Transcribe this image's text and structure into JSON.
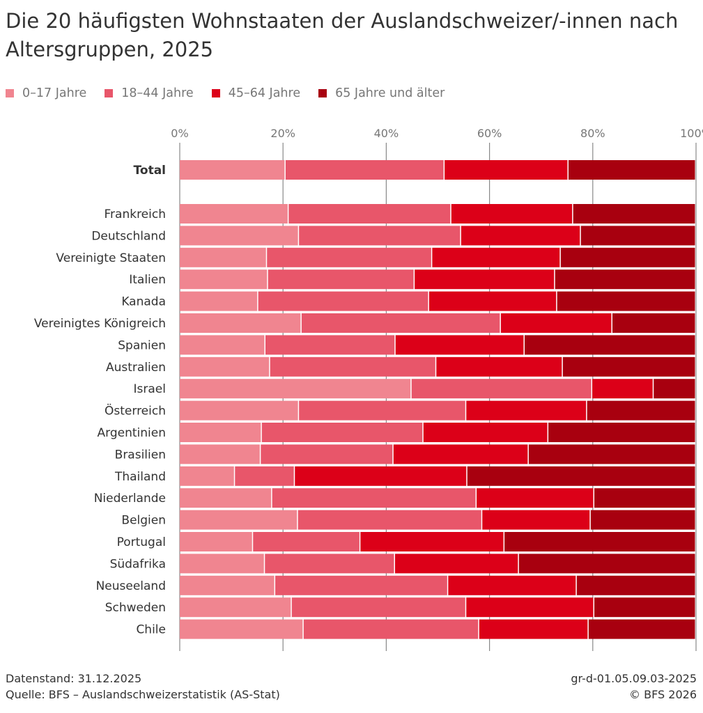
{
  "title": "Die 20 häufigsten Wohnstaaten der Auslandschweizer/-innen nach Altersgruppen, 2025",
  "footer": {
    "left1": "Datenstand: 31.12.2025",
    "left2": "Quelle: BFS – Auslandschweizerstatistik (AS-Stat)",
    "right1": "gr-d-01.05.09.03-2025",
    "right2": "© BFS 2026"
  },
  "chart_data": {
    "type": "bar",
    "orientation": "horizontal",
    "stacked": "percent",
    "xlim": [
      0,
      100
    ],
    "xticks": [
      "0%",
      "20%",
      "40%",
      "60%",
      "80%",
      "100%"
    ],
    "grid": true,
    "legend_position": "top-left",
    "categories": [
      "Total",
      "Frankreich",
      "Deutschland",
      "Vereinigte Staaten",
      "Italien",
      "Kanada",
      "Vereinigtes Königreich",
      "Spanien",
      "Australien",
      "Israel",
      "Österreich",
      "Argentinien",
      "Brasilien",
      "Thailand",
      "Niederlande",
      "Belgien",
      "Portugal",
      "Südafrika",
      "Neuseeland",
      "Schweden",
      "Chile"
    ],
    "series": [
      {
        "name": "0–17 Jahre",
        "color": "#f08590",
        "values": [
          20.5,
          21.1,
          23.1,
          16.9,
          17.1,
          15.2,
          23.6,
          16.6,
          17.5,
          44.9,
          23.1,
          15.9,
          15.7,
          10.7,
          17.9,
          22.9,
          14.2,
          16.5,
          18.5,
          21.7,
          24.0
        ]
      },
      {
        "name": "18–44 Jahre",
        "color": "#e8566a",
        "values": [
          30.8,
          31.5,
          31.4,
          32.0,
          28.4,
          33.1,
          38.6,
          25.2,
          32.2,
          35.0,
          32.4,
          31.3,
          25.7,
          11.6,
          39.6,
          35.7,
          20.8,
          25.2,
          33.5,
          33.8,
          34.0
        ]
      },
      {
        "name": "45–64 Jahre",
        "color": "#dc0018",
        "values": [
          24.0,
          23.6,
          23.2,
          24.9,
          27.2,
          24.8,
          21.6,
          25.0,
          24.5,
          11.9,
          23.4,
          24.2,
          26.2,
          33.4,
          22.8,
          21.0,
          27.9,
          24.0,
          24.9,
          24.8,
          21.2
        ]
      },
      {
        "name": "65 Jahre und älter",
        "color": "#a8000f",
        "values": [
          24.7,
          23.8,
          22.3,
          26.2,
          27.3,
          26.9,
          16.2,
          33.2,
          25.8,
          8.2,
          21.1,
          28.6,
          32.4,
          44.3,
          19.7,
          20.4,
          37.1,
          34.3,
          23.1,
          19.7,
          20.8
        ]
      }
    ]
  }
}
